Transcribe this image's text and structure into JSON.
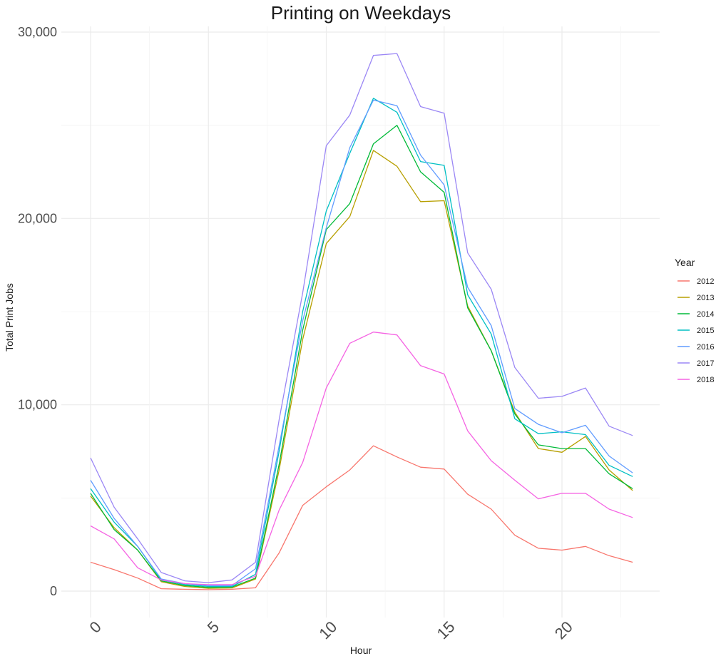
{
  "chart_data": {
    "type": "line",
    "title": "Printing on Weekdays",
    "xlabel": "Hour",
    "ylabel": "Total Print Jobs",
    "xlim": [
      0,
      23
    ],
    "ylim": [
      0,
      30000
    ],
    "x_ticks": [
      "0",
      "5",
      "10",
      "15",
      "20"
    ],
    "y_ticks": [
      "0",
      "10,000",
      "20,000",
      "30,000"
    ],
    "grid": true,
    "legend_title": "Year",
    "legend_position": "right",
    "x": [
      0,
      1,
      2,
      3,
      4,
      5,
      6,
      7,
      8,
      9,
      10,
      11,
      12,
      13,
      14,
      15,
      16,
      17,
      18,
      19,
      20,
      21,
      22,
      23
    ],
    "series": [
      {
        "name": "2012",
        "color": "#F8766D",
        "values": [
          1550,
          1150,
          700,
          130,
          100,
          80,
          100,
          180,
          2050,
          4600,
          5600,
          6500,
          7800,
          7200,
          6650,
          6550,
          5200,
          4400,
          3000,
          2300,
          2200,
          2400,
          1900,
          1550
        ]
      },
      {
        "name": "2013",
        "color": "#B79F00",
        "values": [
          5100,
          3400,
          2200,
          500,
          250,
          150,
          170,
          650,
          6500,
          13500,
          18650,
          20100,
          23650,
          22800,
          20900,
          20950,
          15300,
          12900,
          9600,
          7650,
          7450,
          8300,
          6500,
          5400
        ]
      },
      {
        "name": "2014",
        "color": "#00BA38",
        "values": [
          5250,
          3300,
          2200,
          550,
          300,
          200,
          220,
          700,
          6800,
          14000,
          19400,
          20800,
          24000,
          25000,
          22500,
          21400,
          15200,
          12900,
          9500,
          7850,
          7650,
          7650,
          6300,
          5500
        ]
      },
      {
        "name": "2015",
        "color": "#00BFC4",
        "values": [
          5500,
          3700,
          2400,
          600,
          350,
          250,
          250,
          900,
          7500,
          15000,
          20400,
          23500,
          26450,
          25700,
          23050,
          22850,
          15900,
          13800,
          9250,
          8450,
          8550,
          8400,
          6750,
          6150
        ]
      },
      {
        "name": "2016",
        "color": "#619CFF",
        "values": [
          5950,
          3900,
          2400,
          650,
          400,
          300,
          300,
          1200,
          7800,
          14500,
          19500,
          23800,
          26350,
          26050,
          23400,
          21800,
          16300,
          14250,
          9800,
          8950,
          8500,
          8900,
          7250,
          6350
        ]
      },
      {
        "name": "2017",
        "color": "#9B87F5",
        "values": [
          7150,
          4500,
          2800,
          1000,
          550,
          450,
          600,
          1550,
          9200,
          16000,
          23900,
          25550,
          28750,
          28850,
          26000,
          25650,
          18150,
          16200,
          12000,
          10350,
          10450,
          10900,
          8850,
          8350
        ]
      },
      {
        "name": "2018",
        "color": "#F564E3",
        "values": [
          3500,
          2800,
          1250,
          600,
          400,
          350,
          350,
          800,
          4350,
          6900,
          10900,
          13300,
          13900,
          13750,
          12100,
          11650,
          8600,
          7000,
          5950,
          4950,
          5250,
          5250,
          4400,
          3950
        ]
      }
    ]
  }
}
